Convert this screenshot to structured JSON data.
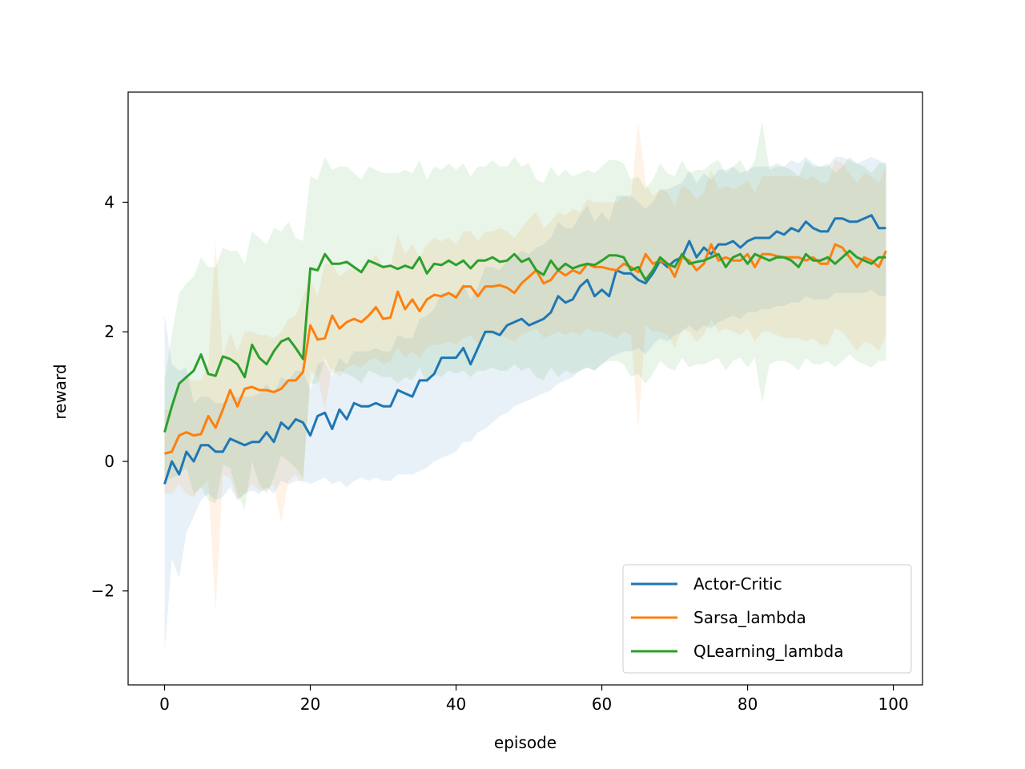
{
  "chart_data": {
    "type": "line",
    "title": "",
    "xlabel": "episode",
    "ylabel": "reward",
    "xlim": [
      -5,
      104
    ],
    "ylim": [
      -3.45,
      5.7
    ],
    "xticks": [
      0,
      20,
      40,
      60,
      80,
      100
    ],
    "xtick_labels": [
      "0",
      "20",
      "40",
      "60",
      "80",
      "100"
    ],
    "yticks": [
      -2,
      0,
      2,
      4
    ],
    "ytick_labels": [
      "−2",
      "0",
      "2",
      "4"
    ],
    "grid": false,
    "legend_position": "lower-right",
    "x": [
      0,
      1,
      2,
      3,
      4,
      5,
      6,
      7,
      8,
      9,
      10,
      11,
      12,
      13,
      14,
      15,
      16,
      17,
      18,
      19,
      20,
      21,
      22,
      23,
      24,
      25,
      26,
      27,
      28,
      29,
      30,
      31,
      32,
      33,
      34,
      35,
      36,
      37,
      38,
      39,
      40,
      41,
      42,
      43,
      44,
      45,
      46,
      47,
      48,
      49,
      50,
      51,
      52,
      53,
      54,
      55,
      56,
      57,
      58,
      59,
      60,
      61,
      62,
      63,
      64,
      65,
      66,
      67,
      68,
      69,
      70,
      71,
      72,
      73,
      74,
      75,
      76,
      77,
      78,
      79,
      80,
      81,
      82,
      83,
      84,
      85,
      86,
      87,
      88,
      89,
      90,
      91,
      92,
      93,
      94,
      95,
      96,
      97,
      98,
      99
    ],
    "series": [
      {
        "name": "Actor-Critic",
        "color": "#1f77b4",
        "values": [
          -0.35,
          0.0,
          -0.2,
          0.15,
          0.0,
          0.25,
          0.25,
          0.15,
          0.15,
          0.35,
          0.3,
          0.25,
          0.3,
          0.3,
          0.45,
          0.3,
          0.6,
          0.5,
          0.65,
          0.6,
          0.4,
          0.7,
          0.75,
          0.5,
          0.8,
          0.65,
          0.9,
          0.85,
          0.85,
          0.9,
          0.85,
          0.85,
          1.1,
          1.05,
          1.0,
          1.25,
          1.25,
          1.35,
          1.6,
          1.6,
          1.6,
          1.75,
          1.5,
          1.75,
          2.0,
          2.0,
          1.95,
          2.1,
          2.15,
          2.2,
          2.1,
          2.15,
          2.2,
          2.3,
          2.55,
          2.45,
          2.5,
          2.7,
          2.8,
          2.55,
          2.65,
          2.55,
          2.95,
          2.9,
          2.9,
          2.8,
          2.75,
          2.9,
          3.1,
          3.0,
          3.1,
          3.15,
          3.4,
          3.15,
          3.3,
          3.2,
          3.35,
          3.35,
          3.4,
          3.3,
          3.4,
          3.45,
          3.45,
          3.45,
          3.55,
          3.5,
          3.6,
          3.55,
          3.7,
          3.6,
          3.55,
          3.55,
          3.75,
          3.75,
          3.7,
          3.7,
          3.75,
          3.8,
          3.6,
          3.6
        ],
        "lower": [
          -2.95,
          -1.5,
          -1.8,
          -1.1,
          -0.85,
          -0.6,
          -0.5,
          -0.6,
          -0.55,
          -0.4,
          -0.6,
          -0.5,
          -0.45,
          -0.5,
          -0.4,
          -0.5,
          -0.3,
          -0.35,
          -0.3,
          -0.3,
          -0.35,
          -0.3,
          -0.25,
          -0.35,
          -0.3,
          -0.4,
          -0.3,
          -0.25,
          -0.3,
          -0.25,
          -0.3,
          -0.3,
          -0.2,
          -0.2,
          -0.2,
          -0.15,
          -0.1,
          0.0,
          0.05,
          0.1,
          0.15,
          0.3,
          0.3,
          0.45,
          0.5,
          0.6,
          0.7,
          0.75,
          0.85,
          0.9,
          0.95,
          1.0,
          1.05,
          1.1,
          1.2,
          1.25,
          1.3,
          1.4,
          1.45,
          1.4,
          1.5,
          1.6,
          1.65,
          1.7,
          1.7,
          1.75,
          1.65,
          1.8,
          1.9,
          1.85,
          1.95,
          2.0,
          2.1,
          2.0,
          2.1,
          2.05,
          2.15,
          2.2,
          2.25,
          2.2,
          2.3,
          2.3,
          2.35,
          2.35,
          2.4,
          2.4,
          2.45,
          2.45,
          2.55,
          2.5,
          2.5,
          2.5,
          2.6,
          2.6,
          2.6,
          2.6,
          2.6,
          2.65,
          2.55,
          2.55
        ],
        "upper": [
          2.25,
          1.5,
          1.4,
          1.45,
          0.9,
          1.0,
          1.0,
          0.9,
          0.9,
          1.0,
          1.0,
          1.0,
          1.0,
          1.05,
          1.2,
          1.05,
          1.3,
          1.25,
          1.4,
          1.4,
          1.1,
          1.5,
          1.55,
          1.3,
          1.6,
          1.5,
          1.7,
          1.7,
          1.7,
          1.75,
          1.7,
          1.7,
          1.95,
          1.9,
          1.9,
          2.2,
          2.25,
          2.35,
          2.6,
          2.6,
          2.6,
          2.75,
          2.5,
          2.7,
          3.0,
          3.0,
          2.95,
          3.1,
          3.15,
          3.25,
          3.2,
          3.3,
          3.35,
          3.45,
          3.7,
          3.6,
          3.6,
          3.8,
          3.95,
          3.7,
          3.85,
          3.7,
          4.1,
          4.1,
          4.1,
          4.0,
          3.9,
          4.0,
          4.2,
          4.2,
          4.25,
          4.3,
          4.5,
          4.3,
          4.45,
          4.35,
          4.5,
          4.5,
          4.55,
          4.45,
          4.5,
          4.55,
          4.55,
          4.55,
          4.6,
          4.55,
          4.65,
          4.6,
          4.7,
          4.6,
          4.55,
          4.55,
          4.7,
          4.7,
          4.65,
          4.6,
          4.65,
          4.7,
          4.65,
          4.6
        ]
      },
      {
        "name": "Sarsa_lambda",
        "color": "#ff7f0e",
        "values": [
          0.12,
          0.15,
          0.4,
          0.45,
          0.4,
          0.42,
          0.7,
          0.52,
          0.8,
          1.1,
          0.85,
          1.12,
          1.15,
          1.1,
          1.1,
          1.07,
          1.12,
          1.25,
          1.25,
          1.38,
          2.1,
          1.88,
          1.9,
          2.25,
          2.05,
          2.15,
          2.2,
          2.15,
          2.25,
          2.38,
          2.2,
          2.22,
          2.62,
          2.35,
          2.5,
          2.32,
          2.5,
          2.57,
          2.55,
          2.6,
          2.53,
          2.7,
          2.7,
          2.55,
          2.7,
          2.7,
          2.72,
          2.68,
          2.6,
          2.75,
          2.85,
          2.95,
          2.75,
          2.8,
          2.95,
          2.87,
          2.95,
          2.9,
          3.05,
          3.0,
          3.0,
          2.97,
          2.95,
          3.05,
          3.0,
          2.92,
          3.2,
          3.05,
          3.1,
          3.05,
          2.85,
          3.15,
          3.1,
          2.95,
          3.05,
          3.35,
          3.1,
          3.15,
          3.1,
          3.1,
          3.2,
          3.0,
          3.2,
          3.2,
          3.17,
          3.15,
          3.15,
          3.15,
          3.1,
          3.15,
          3.05,
          3.05,
          3.35,
          3.3,
          3.15,
          3.0,
          3.15,
          3.1,
          3.0,
          3.25
        ],
        "lower": [
          -0.5,
          -0.5,
          -0.35,
          -0.5,
          -0.55,
          -0.4,
          -0.3,
          -2.35,
          -0.2,
          -0.25,
          -0.6,
          -0.5,
          -0.35,
          -0.45,
          -0.45,
          -0.35,
          -0.95,
          -0.3,
          -0.2,
          -0.35,
          1.4,
          1.3,
          0.8,
          1.45,
          1.3,
          1.45,
          1.5,
          1.45,
          1.55,
          1.6,
          1.5,
          1.55,
          1.75,
          1.6,
          1.7,
          1.6,
          1.75,
          1.8,
          1.8,
          1.85,
          1.8,
          1.9,
          1.95,
          1.8,
          1.95,
          1.95,
          1.95,
          1.9,
          1.85,
          1.95,
          2.0,
          2.05,
          1.9,
          1.95,
          2.0,
          1.95,
          2.0,
          1.95,
          2.05,
          2.0,
          2.0,
          1.95,
          1.9,
          2.0,
          1.95,
          0.5,
          2.1,
          2.0,
          2.0,
          1.95,
          1.75,
          2.05,
          2.0,
          1.85,
          1.95,
          2.2,
          2.0,
          2.05,
          2.0,
          1.95,
          2.05,
          1.85,
          2.0,
          2.0,
          1.95,
          1.9,
          1.9,
          1.9,
          1.85,
          1.9,
          1.8,
          1.8,
          2.05,
          2.0,
          1.85,
          1.7,
          1.85,
          1.8,
          1.7,
          1.95
        ],
        "upper": [
          0.8,
          0.8,
          1.15,
          1.3,
          1.25,
          1.25,
          1.5,
          3.4,
          1.6,
          2.0,
          1.7,
          2.0,
          2.0,
          1.95,
          1.95,
          1.9,
          2.0,
          2.2,
          2.25,
          2.55,
          2.8,
          2.55,
          3.05,
          3.05,
          2.85,
          2.95,
          3.0,
          2.9,
          3.05,
          3.2,
          3.0,
          3.0,
          3.5,
          3.2,
          3.35,
          3.15,
          3.35,
          3.45,
          3.4,
          3.45,
          3.35,
          3.55,
          3.55,
          3.4,
          3.55,
          3.55,
          3.6,
          3.55,
          3.45,
          3.6,
          3.75,
          3.85,
          3.6,
          3.7,
          3.85,
          3.8,
          3.9,
          3.85,
          4.05,
          4.0,
          4.0,
          4.0,
          4.0,
          4.1,
          4.05,
          5.25,
          4.3,
          4.1,
          4.2,
          4.15,
          3.95,
          4.25,
          4.2,
          4.05,
          4.15,
          4.5,
          4.2,
          4.25,
          4.2,
          4.25,
          4.35,
          4.15,
          4.4,
          4.4,
          4.4,
          4.4,
          4.4,
          4.4,
          4.35,
          4.4,
          4.3,
          4.3,
          4.65,
          4.6,
          4.45,
          4.3,
          4.45,
          4.4,
          4.3,
          4.55
        ]
      },
      {
        "name": "QLearning_lambda",
        "color": "#2ca02c",
        "values": [
          0.45,
          0.85,
          1.2,
          1.3,
          1.4,
          1.65,
          1.35,
          1.32,
          1.62,
          1.58,
          1.5,
          1.3,
          1.8,
          1.6,
          1.5,
          1.7,
          1.85,
          1.9,
          1.75,
          1.58,
          2.98,
          2.95,
          3.2,
          3.05,
          3.05,
          3.08,
          3.0,
          2.92,
          3.1,
          3.05,
          3.0,
          3.02,
          2.97,
          3.02,
          2.98,
          3.15,
          2.9,
          3.05,
          3.03,
          3.1,
          3.03,
          3.1,
          2.98,
          3.1,
          3.1,
          3.15,
          3.08,
          3.1,
          3.2,
          3.08,
          3.13,
          2.95,
          2.88,
          3.1,
          2.95,
          3.05,
          2.98,
          3.02,
          3.05,
          3.03,
          3.1,
          3.18,
          3.18,
          3.15,
          2.95,
          3.0,
          2.8,
          2.95,
          3.15,
          3.05,
          3.0,
          3.2,
          3.05,
          3.08,
          3.1,
          3.15,
          3.2,
          3.0,
          3.15,
          3.2,
          3.05,
          3.2,
          3.15,
          3.1,
          3.15,
          3.15,
          3.1,
          3.0,
          3.2,
          3.1,
          3.1,
          3.15,
          3.05,
          3.15,
          3.25,
          3.15,
          3.1,
          3.05,
          3.15,
          3.15
        ],
        "lower": [
          -0.3,
          -0.25,
          -0.2,
          -0.1,
          -0.5,
          -0.4,
          -0.6,
          -0.65,
          -0.05,
          -0.1,
          -0.5,
          -0.75,
          0.0,
          -0.35,
          -0.5,
          -0.25,
          0.1,
          0.0,
          -0.1,
          -0.25,
          1.2,
          1.2,
          1.6,
          1.35,
          1.4,
          1.35,
          1.3,
          1.2,
          1.4,
          1.35,
          1.3,
          1.3,
          1.2,
          1.3,
          1.25,
          1.45,
          1.2,
          1.35,
          1.3,
          1.4,
          1.35,
          1.4,
          1.3,
          1.4,
          1.4,
          1.45,
          1.4,
          1.4,
          1.5,
          1.4,
          1.45,
          1.3,
          1.25,
          1.45,
          1.3,
          1.4,
          1.35,
          1.4,
          1.45,
          1.4,
          1.5,
          1.55,
          1.55,
          1.5,
          1.3,
          1.35,
          1.2,
          1.35,
          1.55,
          1.45,
          1.4,
          1.6,
          1.45,
          1.5,
          1.5,
          1.55,
          1.6,
          1.4,
          1.55,
          1.6,
          1.45,
          1.6,
          0.9,
          1.5,
          1.55,
          1.55,
          1.5,
          1.4,
          1.6,
          1.5,
          1.5,
          1.55,
          1.45,
          1.55,
          1.65,
          1.55,
          1.5,
          1.45,
          1.55,
          1.55
        ],
        "upper": [
          1.25,
          1.95,
          2.6,
          2.75,
          2.85,
          3.15,
          3.0,
          3.0,
          3.3,
          3.25,
          3.25,
          3.05,
          3.55,
          3.45,
          3.35,
          3.6,
          3.55,
          3.7,
          3.45,
          3.4,
          4.4,
          4.35,
          4.7,
          4.5,
          4.55,
          4.55,
          4.45,
          4.35,
          4.55,
          4.5,
          4.45,
          4.45,
          4.45,
          4.5,
          4.45,
          4.65,
          4.35,
          4.55,
          4.5,
          4.6,
          4.5,
          4.6,
          4.4,
          4.55,
          4.55,
          4.65,
          4.55,
          4.55,
          4.7,
          4.55,
          4.6,
          4.35,
          4.3,
          4.55,
          4.4,
          4.5,
          4.4,
          4.45,
          4.5,
          4.45,
          4.55,
          4.65,
          4.65,
          4.6,
          4.35,
          4.4,
          4.2,
          4.35,
          4.6,
          4.45,
          4.4,
          4.65,
          4.45,
          4.5,
          4.5,
          4.6,
          4.65,
          4.45,
          4.55,
          4.65,
          4.45,
          4.65,
          5.25,
          4.5,
          4.55,
          4.55,
          4.5,
          4.4,
          4.65,
          4.55,
          4.55,
          4.6,
          4.45,
          4.55,
          4.7,
          4.6,
          4.55,
          4.45,
          4.6,
          4.6
        ]
      }
    ]
  }
}
